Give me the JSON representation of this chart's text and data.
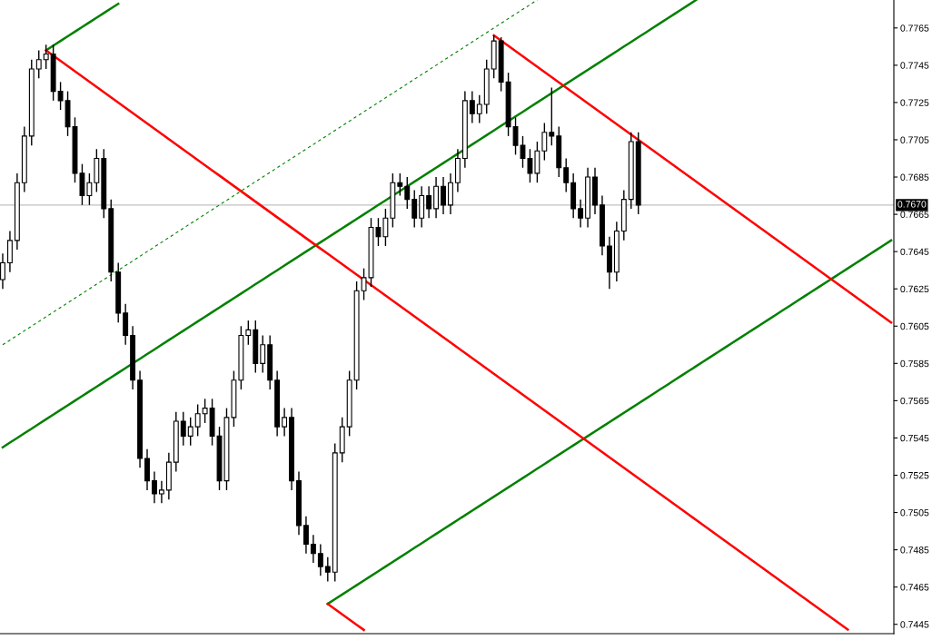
{
  "chart_data": {
    "type": "candlestick",
    "categories": [
      null,
      null,
      null,
      null,
      null,
      null,
      null,
      null,
      null,
      null,
      null,
      null,
      null,
      null,
      null,
      null,
      null,
      null,
      null,
      null,
      null,
      null,
      null,
      null,
      null,
      null,
      null,
      null,
      null,
      null,
      null,
      null,
      null,
      null,
      null,
      null,
      null,
      null,
      null,
      null,
      null,
      null,
      null,
      null,
      null,
      null,
      null,
      null,
      null,
      null,
      null,
      null,
      null,
      null,
      null,
      null,
      null,
      null,
      null,
      null,
      null,
      null,
      null,
      null,
      null,
      null,
      null,
      null,
      null,
      null,
      null,
      null,
      null,
      null,
      null,
      null,
      null,
      null,
      null,
      null,
      null,
      null,
      null,
      null,
      null,
      null,
      null,
      null,
      null,
      null,
      null,
      null,
      null,
      null,
      null,
      null,
      null,
      null,
      null,
      null,
      null,
      null,
      null,
      null,
      null,
      null,
      null,
      null,
      null,
      null,
      null,
      null,
      null,
      null,
      null,
      null,
      null,
      null,
      null,
      null,
      null,
      null,
      null,
      null
    ],
    "ohlc": [
      [
        0.763,
        0.7644,
        0.7625,
        0.7639
      ],
      [
        0.7639,
        0.7656,
        0.7634,
        0.7651
      ],
      [
        0.7651,
        0.7687,
        0.7646,
        0.7682
      ],
      [
        0.7682,
        0.7712,
        0.7677,
        0.7707
      ],
      [
        0.7707,
        0.7748,
        0.7702,
        0.7743
      ],
      [
        0.7743,
        0.7753,
        0.7738,
        0.7748
      ],
      [
        0.7748,
        0.7756,
        0.7743,
        0.7751
      ],
      [
        0.7751,
        0.7756,
        0.7726,
        0.7731
      ],
      [
        0.7731,
        0.7736,
        0.7721,
        0.7726
      ],
      [
        0.7726,
        0.7731,
        0.7707,
        0.7712
      ],
      [
        0.7712,
        0.7717,
        0.7682,
        0.7687
      ],
      [
        0.7687,
        0.7692,
        0.767,
        0.7675
      ],
      [
        0.7675,
        0.7687,
        0.767,
        0.7682
      ],
      [
        0.7682,
        0.77,
        0.7677,
        0.7695
      ],
      [
        0.7695,
        0.77,
        0.7663,
        0.7668
      ],
      [
        0.7668,
        0.7673,
        0.7629,
        0.7634
      ],
      [
        0.7634,
        0.7639,
        0.7607,
        0.7612
      ],
      [
        0.7612,
        0.7617,
        0.7595,
        0.76
      ],
      [
        0.76,
        0.7605,
        0.7571,
        0.7576
      ],
      [
        0.7576,
        0.7581,
        0.7529,
        0.7534
      ],
      [
        0.7534,
        0.7539,
        0.7517,
        0.7522
      ],
      [
        0.7522,
        0.7527,
        0.751,
        0.7515
      ],
      [
        0.7515,
        0.7522,
        0.751,
        0.7517
      ],
      [
        0.7517,
        0.7537,
        0.7512,
        0.7532
      ],
      [
        0.7532,
        0.7559,
        0.7527,
        0.7554
      ],
      [
        0.7554,
        0.7559,
        0.7541,
        0.7546
      ],
      [
        0.7546,
        0.7556,
        0.7541,
        0.7551
      ],
      [
        0.7551,
        0.7563,
        0.7546,
        0.7558
      ],
      [
        0.7558,
        0.7566,
        0.7553,
        0.7561
      ],
      [
        0.7561,
        0.7566,
        0.7541,
        0.7546
      ],
      [
        0.7546,
        0.7551,
        0.7517,
        0.7522
      ],
      [
        0.7522,
        0.7561,
        0.7517,
        0.7556
      ],
      [
        0.7556,
        0.7581,
        0.7551,
        0.7576
      ],
      [
        0.7576,
        0.7605,
        0.7571,
        0.76
      ],
      [
        0.76,
        0.7608,
        0.7595,
        0.7603
      ],
      [
        0.7603,
        0.7608,
        0.758,
        0.7585
      ],
      [
        0.7585,
        0.76,
        0.758,
        0.7595
      ],
      [
        0.7595,
        0.76,
        0.7571,
        0.7576
      ],
      [
        0.7576,
        0.7581,
        0.7546,
        0.7551
      ],
      [
        0.7551,
        0.7561,
        0.7546,
        0.7556
      ],
      [
        0.7556,
        0.7561,
        0.7517,
        0.7522
      ],
      [
        0.7522,
        0.7527,
        0.7493,
        0.7498
      ],
      [
        0.7498,
        0.7503,
        0.7483,
        0.7488
      ],
      [
        0.7488,
        0.7493,
        0.7478,
        0.7483
      ],
      [
        0.7483,
        0.7488,
        0.7471,
        0.7476
      ],
      [
        0.7476,
        0.7481,
        0.7468,
        0.7473
      ],
      [
        0.7473,
        0.7542,
        0.7468,
        0.7537
      ],
      [
        0.7537,
        0.7556,
        0.7532,
        0.7551
      ],
      [
        0.7551,
        0.7581,
        0.7546,
        0.7576
      ],
      [
        0.7576,
        0.7629,
        0.7571,
        0.7624
      ],
      [
        0.7624,
        0.7636,
        0.7619,
        0.7631
      ],
      [
        0.7631,
        0.7663,
        0.7626,
        0.7658
      ],
      [
        0.7658,
        0.7663,
        0.7648,
        0.7653
      ],
      [
        0.7653,
        0.7668,
        0.7648,
        0.7663
      ],
      [
        0.7663,
        0.7687,
        0.7658,
        0.7682
      ],
      [
        0.7682,
        0.7687,
        0.7675,
        0.768
      ],
      [
        0.768,
        0.7685,
        0.7668,
        0.7673
      ],
      [
        0.7673,
        0.7678,
        0.7658,
        0.7663
      ],
      [
        0.7663,
        0.768,
        0.7658,
        0.7675
      ],
      [
        0.7675,
        0.768,
        0.7663,
        0.7668
      ],
      [
        0.7668,
        0.7685,
        0.7663,
        0.768
      ],
      [
        0.768,
        0.7685,
        0.7665,
        0.767
      ],
      [
        0.767,
        0.7687,
        0.7665,
        0.7682
      ],
      [
        0.7682,
        0.77,
        0.7677,
        0.7695
      ],
      [
        0.7695,
        0.7731,
        0.769,
        0.7726
      ],
      [
        0.7726,
        0.7731,
        0.7714,
        0.7719
      ],
      [
        0.7719,
        0.7729,
        0.7714,
        0.7724
      ],
      [
        0.7724,
        0.7748,
        0.7719,
        0.7743
      ],
      [
        0.7743,
        0.7761,
        0.7738,
        0.7758
      ],
      [
        0.7758,
        0.776,
        0.7731,
        0.7736
      ],
      [
        0.7736,
        0.7741,
        0.7707,
        0.7712
      ],
      [
        0.7712,
        0.7717,
        0.7697,
        0.7702
      ],
      [
        0.7702,
        0.7707,
        0.769,
        0.7695
      ],
      [
        0.7695,
        0.77,
        0.7682,
        0.7687
      ],
      [
        0.7687,
        0.7704,
        0.7682,
        0.7699
      ],
      [
        0.7699,
        0.7714,
        0.7694,
        0.7709
      ],
      [
        0.7709,
        0.7733,
        0.7702,
        0.7707
      ],
      [
        0.7707,
        0.7712,
        0.7685,
        0.769
      ],
      [
        0.769,
        0.7695,
        0.7677,
        0.7682
      ],
      [
        0.7682,
        0.7687,
        0.7663,
        0.7668
      ],
      [
        0.7668,
        0.7673,
        0.7658,
        0.7663
      ],
      [
        0.7663,
        0.769,
        0.7658,
        0.7685
      ],
      [
        0.7685,
        0.769,
        0.7665,
        0.767
      ],
      [
        0.767,
        0.7675,
        0.7643,
        0.7648
      ],
      [
        0.7648,
        0.7653,
        0.7625,
        0.7634
      ],
      [
        0.7634,
        0.7661,
        0.7629,
        0.7656
      ],
      [
        0.7656,
        0.7678,
        0.7651,
        0.7673
      ],
      [
        0.7673,
        0.7709,
        0.7668,
        0.7704
      ],
      [
        0.7704,
        0.7709,
        0.7665,
        0.767
      ],
      null,
      null,
      null,
      null,
      null,
      null,
      null,
      null,
      null,
      null,
      null,
      null,
      null,
      null,
      null,
      null,
      null,
      null,
      null,
      null,
      null,
      null,
      null,
      null,
      null,
      null,
      null,
      null,
      null,
      null,
      null,
      null,
      null,
      null,
      null
    ],
    "series": [
      {
        "type": "line",
        "color": "#008000",
        "line_style": "solid",
        "values": [
          null,
          null,
          null,
          null,
          null,
          null,
          0.7753,
          0.77555,
          0.7758,
          0.77605,
          0.7763,
          0.77655,
          0.7768,
          0.77705,
          0.7773,
          0.77755,
          0.7778,
          null,
          null,
          null,
          null,
          null,
          null,
          null,
          null,
          null,
          null,
          null,
          null,
          null,
          null,
          null,
          null,
          null,
          null,
          null,
          null,
          null,
          null,
          null,
          null,
          null,
          null,
          null,
          null,
          null,
          null,
          null,
          null,
          null,
          null,
          null,
          null,
          null,
          null,
          null,
          null,
          null,
          null,
          null,
          null,
          null,
          null,
          null,
          null,
          null,
          null,
          null,
          null,
          null,
          null,
          null,
          null,
          null,
          null,
          null,
          null,
          null,
          null,
          null,
          null,
          null,
          null,
          null,
          null,
          null,
          null,
          null,
          null,
          null,
          null,
          null,
          null,
          null,
          null,
          null,
          null,
          null,
          null,
          null,
          null,
          null,
          null,
          null,
          null,
          null,
          null,
          null,
          null,
          null,
          null,
          null,
          null,
          null,
          null,
          null,
          null,
          null,
          null,
          null,
          null,
          null,
          null,
          null
        ]
      },
      {
        "type": "line",
        "color": "#008000",
        "line_style": "solid",
        "values": [
          0.754,
          0.75425,
          0.7545,
          0.75475,
          0.755,
          0.75525,
          0.7555,
          0.75575,
          0.756,
          0.75625,
          0.7565,
          0.75675,
          0.757,
          0.75725,
          0.7575,
          0.75775,
          0.758,
          0.75825,
          0.7585,
          0.75875,
          0.759,
          0.75925,
          0.7595,
          0.75975,
          0.76,
          0.76025,
          0.7605,
          0.76075,
          0.761,
          0.76125,
          0.7615,
          0.76175,
          0.762,
          0.76225,
          0.7625,
          0.76275,
          0.763,
          0.76325,
          0.7635,
          0.76375,
          0.764,
          0.76425,
          0.7645,
          0.76475,
          0.765,
          0.76525,
          0.7655,
          0.76575,
          0.766,
          0.76625,
          0.7665,
          0.76675,
          0.767,
          0.76725,
          0.7675,
          0.76775,
          0.768,
          0.76825,
          0.7685,
          0.76875,
          0.769,
          0.76925,
          0.7695,
          0.76975,
          0.77,
          0.77025,
          0.7705,
          0.77075,
          0.771,
          0.77125,
          0.7715,
          0.77175,
          0.772,
          0.77225,
          0.7725,
          0.77275,
          0.773,
          0.77325,
          0.7735,
          0.77375,
          0.774,
          0.77425,
          0.7745,
          0.77475,
          0.775,
          0.77525,
          0.7755,
          0.77575,
          0.776,
          0.77625,
          0.7765,
          0.77675,
          0.777,
          0.77725,
          0.7775,
          0.77775,
          0.778,
          null,
          null,
          null,
          null,
          null,
          null,
          null,
          null,
          null,
          null,
          null,
          null,
          null,
          null,
          null,
          null,
          null,
          null,
          null,
          null,
          null,
          null,
          null,
          null,
          null,
          null,
          null
        ]
      },
      {
        "type": "line",
        "color": "#008000",
        "line_style": "solid",
        "values": [
          null,
          null,
          null,
          null,
          null,
          null,
          null,
          null,
          null,
          null,
          null,
          null,
          null,
          null,
          null,
          null,
          null,
          null,
          null,
          null,
          null,
          null,
          null,
          null,
          null,
          null,
          null,
          null,
          null,
          null,
          null,
          null,
          null,
          null,
          null,
          null,
          null,
          null,
          null,
          null,
          null,
          null,
          null,
          null,
          null,
          0.7456,
          0.74585,
          0.7461,
          0.74635,
          0.7466,
          0.74685,
          0.7471,
          0.74735,
          0.7476,
          0.74785,
          0.7481,
          0.74835,
          0.7486,
          0.74885,
          0.7491,
          0.74935,
          0.7496,
          0.74985,
          0.7501,
          0.75035,
          0.7506,
          0.75085,
          0.7511,
          0.75135,
          0.7516,
          0.75185,
          0.7521,
          0.75235,
          0.7526,
          0.75285,
          0.7531,
          0.75335,
          0.7536,
          0.75385,
          0.7541,
          0.75435,
          0.7546,
          0.75485,
          0.7551,
          0.75535,
          0.7556,
          0.75585,
          0.7561,
          0.75635,
          0.7566,
          0.75685,
          0.7571,
          0.75735,
          0.7576,
          0.75785,
          0.7581,
          0.75835,
          0.7586,
          0.75885,
          0.7591,
          0.75935,
          0.7596,
          0.75985,
          0.7601,
          0.76035,
          0.7606,
          0.76085,
          0.7611,
          0.76135,
          0.7616,
          0.76185,
          0.7621,
          0.76235,
          0.7626,
          0.76285,
          0.7631,
          0.76335,
          0.7636,
          0.76385,
          0.7641,
          0.76435,
          0.7646,
          0.76485,
          0.7651
        ]
      },
      {
        "type": "line",
        "color": "#008000",
        "line_style": "dashed",
        "values": [
          0.7595,
          0.75975,
          0.76,
          0.76025,
          0.7605,
          0.76075,
          0.761,
          0.76125,
          0.7615,
          0.76175,
          0.762,
          0.76225,
          0.7625,
          0.76275,
          0.763,
          0.76325,
          0.7635,
          0.76375,
          0.764,
          0.76425,
          0.7645,
          0.76475,
          0.765,
          0.76525,
          0.7655,
          0.76575,
          0.766,
          0.76625,
          0.7665,
          0.76675,
          0.767,
          0.76725,
          0.7675,
          0.76775,
          0.768,
          0.76825,
          0.7685,
          0.76875,
          0.769,
          0.76925,
          0.7695,
          0.76975,
          0.77,
          0.77025,
          0.7705,
          0.77075,
          0.771,
          0.77125,
          0.7715,
          0.77175,
          0.772,
          0.77225,
          0.7725,
          0.77275,
          0.773,
          0.77325,
          0.7735,
          0.77375,
          0.774,
          0.77425,
          0.7745,
          0.77475,
          0.775,
          0.77525,
          0.7755,
          0.77575,
          0.776,
          0.77625,
          0.7765,
          0.77675,
          0.777,
          0.77725,
          0.7775,
          0.77775,
          0.778,
          null,
          null,
          null,
          null,
          null,
          null,
          null,
          null,
          null,
          null,
          null,
          null,
          null,
          null,
          null,
          null,
          null,
          null,
          null,
          null,
          null,
          null,
          null,
          null,
          null,
          null,
          null,
          null,
          null,
          null,
          null,
          null,
          null,
          null,
          null,
          null,
          null,
          null,
          null,
          null,
          null,
          null,
          null,
          null,
          null,
          null,
          null,
          null,
          null
        ]
      },
      {
        "type": "line",
        "color": "#ff0000",
        "line_style": "solid",
        "values": [
          null,
          null,
          null,
          null,
          null,
          null,
          0.7753,
          0.77502,
          0.77474,
          0.77446,
          0.77418,
          0.7739,
          0.77362,
          0.77334,
          0.77306,
          0.77278,
          0.7725,
          0.77222,
          0.77194,
          0.77166,
          0.77138,
          0.7711,
          0.77082,
          0.77054,
          0.77026,
          0.76998,
          0.7697,
          0.76942,
          0.76914,
          0.76886,
          0.76858,
          0.7683,
          0.76802,
          0.76774,
          0.76746,
          0.76718,
          0.7669,
          0.76662,
          0.76634,
          0.76606,
          0.76578,
          0.7655,
          0.76522,
          0.76494,
          0.76466,
          0.76438,
          0.7641,
          0.76382,
          0.76354,
          0.76326,
          0.76298,
          0.7627,
          0.76242,
          0.76214,
          0.76186,
          0.76158,
          0.7613,
          0.76102,
          0.76074,
          0.76046,
          0.76018,
          0.7599,
          0.75962,
          0.75934,
          0.75906,
          0.75878,
          0.7585,
          0.75822,
          0.75794,
          0.75766,
          0.75738,
          0.7571,
          0.75682,
          0.75654,
          0.75626,
          0.75598,
          0.7557,
          0.75542,
          0.75514,
          0.75486,
          0.75458,
          0.7543,
          0.75402,
          0.75374,
          0.75346,
          0.75318,
          0.7529,
          0.75262,
          0.75234,
          0.75206,
          0.75178,
          0.7515,
          0.75122,
          0.75094,
          0.75066,
          0.75038,
          0.7501,
          0.74982,
          0.74954,
          0.74926,
          0.74898,
          0.7487,
          0.74842,
          0.74814,
          0.74786,
          0.74758,
          0.7473,
          0.74702,
          0.74674,
          0.74646,
          0.74618,
          0.7459,
          0.74562,
          0.74534,
          0.74506,
          0.74478,
          0.7445,
          0.74422,
          null,
          null,
          null,
          null,
          null,
          null
        ]
      },
      {
        "type": "line",
        "color": "#ff0000",
        "line_style": "solid",
        "values": [
          null,
          null,
          null,
          null,
          null,
          null,
          null,
          null,
          null,
          null,
          null,
          null,
          null,
          null,
          null,
          null,
          null,
          null,
          null,
          null,
          null,
          null,
          null,
          null,
          null,
          null,
          null,
          null,
          null,
          null,
          null,
          null,
          null,
          null,
          null,
          null,
          null,
          null,
          null,
          null,
          null,
          null,
          null,
          null,
          null,
          null,
          null,
          null,
          null,
          null,
          null,
          null,
          null,
          null,
          null,
          null,
          null,
          null,
          null,
          null,
          null,
          null,
          null,
          null,
          null,
          null,
          null,
          null,
          0.7761,
          0.77582,
          0.77554,
          0.77526,
          0.77498,
          0.7747,
          0.77442,
          0.77414,
          0.77386,
          0.77358,
          0.7733,
          0.77302,
          0.77274,
          0.77246,
          0.77218,
          0.7719,
          0.77162,
          0.77134,
          0.77106,
          0.77078,
          0.7705,
          0.77022,
          0.76994,
          0.76966,
          0.76938,
          0.7691,
          0.76882,
          0.76854,
          0.76826,
          0.76798,
          0.7677,
          0.76742,
          0.76714,
          0.76686,
          0.76658,
          0.7663,
          0.76602,
          0.76574,
          0.76546,
          0.76518,
          0.7649,
          0.76462,
          0.76434,
          0.76406,
          0.76378,
          0.7635,
          0.76322,
          0.76294,
          0.76266,
          0.76238,
          0.7621,
          0.76182,
          0.76154,
          0.76126,
          0.76098,
          0.7607
        ]
      },
      {
        "type": "line",
        "color": "#ff0000",
        "line_style": "solid",
        "values": [
          null,
          null,
          null,
          null,
          null,
          null,
          null,
          null,
          null,
          null,
          null,
          null,
          null,
          null,
          null,
          null,
          null,
          null,
          null,
          null,
          null,
          null,
          null,
          null,
          null,
          null,
          null,
          null,
          null,
          null,
          null,
          null,
          null,
          null,
          null,
          null,
          null,
          null,
          null,
          null,
          null,
          null,
          null,
          null,
          null,
          0.7456,
          0.74532,
          0.74504,
          0.74476,
          0.74448,
          0.7442,
          null,
          null,
          null,
          null,
          null,
          null,
          null,
          null,
          null,
          null,
          null,
          null,
          null,
          null,
          null,
          null,
          null,
          null,
          null,
          null,
          null,
          null,
          null,
          null,
          null,
          null,
          null,
          null,
          null,
          null,
          null,
          null,
          null,
          null,
          null,
          null,
          null,
          null,
          null,
          null,
          null,
          null,
          null,
          null,
          null,
          null,
          null,
          null,
          null,
          null,
          null,
          null,
          null,
          null,
          null,
          null,
          null,
          null,
          null,
          null,
          null,
          null,
          null,
          null,
          null,
          null,
          null,
          null,
          null,
          null,
          null,
          null,
          null
        ]
      }
    ],
    "ref_lines": [
      {
        "axis": "y",
        "value": 0.767,
        "label": "0.7670",
        "color": "#c0c0c0"
      }
    ],
    "ylim": [
      0.744,
      0.778
    ],
    "yticks": [
      0.7445,
      0.7465,
      0.7485,
      0.7505,
      0.7525,
      0.7545,
      0.7565,
      0.7585,
      0.7605,
      0.7625,
      0.7645,
      0.7665,
      0.7685,
      0.7705,
      0.7725,
      0.7745,
      0.7765
    ],
    "tick_labels": "y",
    "grid": false,
    "legend": false
  }
}
